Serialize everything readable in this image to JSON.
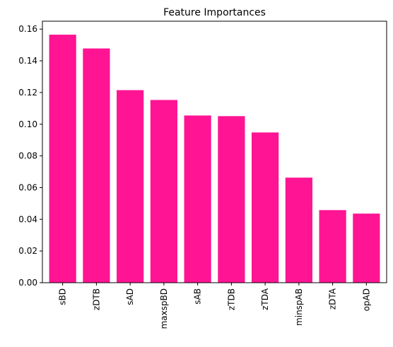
{
  "chart_data": {
    "type": "bar",
    "title": "Feature Importances",
    "xlabel": "",
    "ylabel": "",
    "categories": [
      "sBD",
      "zDTB",
      "sAD",
      "maxspBD",
      "sAB",
      "zTDB",
      "zTDA",
      "minspAB",
      "zDTA",
      "opAD"
    ],
    "values": [
      0.1565,
      0.1478,
      0.1215,
      0.1153,
      0.1055,
      0.1051,
      0.0948,
      0.0663,
      0.0458,
      0.0436
    ],
    "ylim": [
      0,
      0.165
    ],
    "yticks": [
      0.0,
      0.02,
      0.04,
      0.06,
      0.08,
      0.1,
      0.12,
      0.14,
      0.16
    ],
    "ytick_labels": [
      "0.00",
      "0.02",
      "0.04",
      "0.06",
      "0.08",
      "0.10",
      "0.12",
      "0.14",
      "0.16"
    ],
    "grid": false,
    "legend": "none",
    "bar_color": "#ff1493",
    "xtick_rotation": "vertical"
  }
}
